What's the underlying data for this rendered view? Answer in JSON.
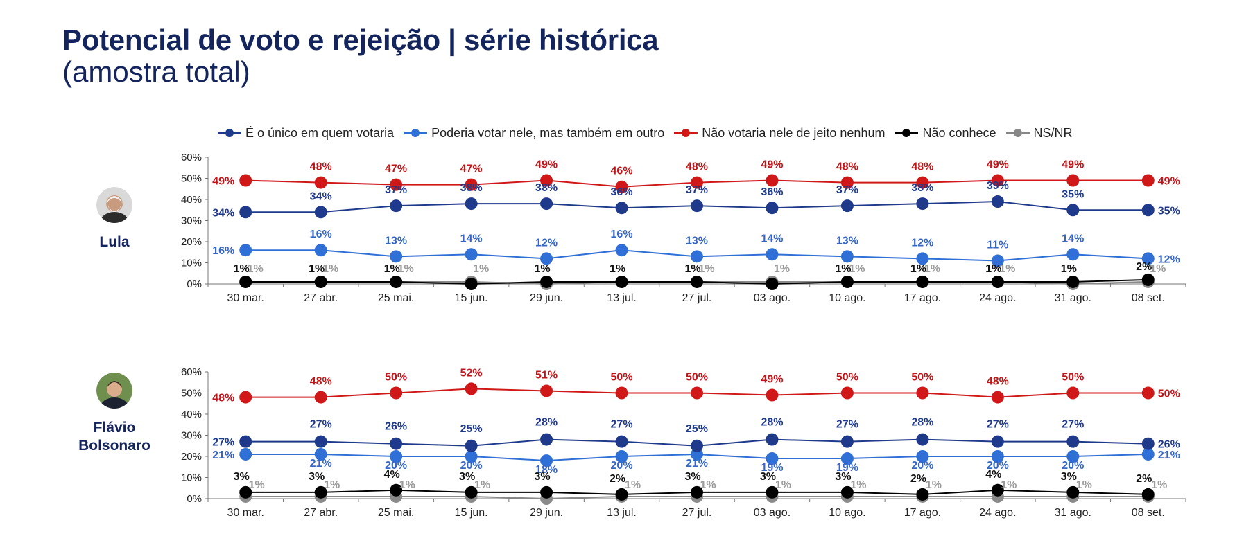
{
  "title": "Potencial de voto e rejeição | série histórica",
  "subtitle": "(amostra total)",
  "legend": [
    {
      "label": "É o único em quem votaria",
      "color": "#1f3a8a"
    },
    {
      "label": "Poderia votar nele, mas também em outro",
      "color": "#2f6fd6"
    },
    {
      "label": "Não votaria nele de jeito nenhum",
      "color": "#d01818"
    },
    {
      "label": "Não conhece",
      "color": "#000000"
    },
    {
      "label": "NS/NR",
      "color": "#888888"
    }
  ],
  "people": [
    {
      "name_lines": [
        "Lula"
      ],
      "avatar_colors": {
        "bg": "#d9d9d9",
        "skin": "#c89a7e",
        "hair": "#f2f2f2"
      }
    },
    {
      "name_lines": [
        "Flávio",
        "Bolsonaro"
      ],
      "avatar_colors": {
        "bg": "#6f8f4e",
        "skin": "#d9ad8c",
        "hair": "#3a2b22"
      }
    }
  ],
  "chart_data": [
    {
      "type": "line",
      "candidate": "Lula",
      "categories": [
        "30 mar.",
        "27 abr.",
        "25 mai.",
        "15 jun.",
        "29 jun.",
        "13 jul.",
        "27 jul.",
        "03 ago.",
        "10 ago.",
        "17 ago.",
        "24 ago.",
        "31 ago.",
        "08 set."
      ],
      "ylim": [
        0,
        60
      ],
      "yticks": [
        "0%",
        "10%",
        "20%",
        "30%",
        "40%",
        "50%",
        "60%"
      ],
      "series": [
        {
          "name": "É o único em quem votaria",
          "color": "#1f3a8a",
          "values": [
            34,
            34,
            37,
            38,
            38,
            36,
            37,
            36,
            37,
            38,
            39,
            35,
            35
          ]
        },
        {
          "name": "Poderia votar nele, mas também em outro",
          "color": "#2f6fd6",
          "label_color": "#3566c4",
          "values": [
            16,
            16,
            13,
            14,
            12,
            16,
            13,
            14,
            13,
            12,
            11,
            14,
            12
          ]
        },
        {
          "name": "Não votaria nele de jeito nenhum",
          "color": "#d01818",
          "label_color": "#c0161a",
          "values": [
            49,
            48,
            47,
            47,
            49,
            46,
            48,
            49,
            48,
            48,
            49,
            49,
            49
          ]
        },
        {
          "name": "Não conhece",
          "color": "#000000",
          "label_color": "#111111",
          "values": [
            1,
            1,
            1,
            0,
            1,
            1,
            1,
            0,
            1,
            1,
            1,
            1,
            2
          ],
          "labels": [
            "1%",
            "1%",
            "1%",
            "",
            "1%",
            "1%",
            "1%",
            "",
            "1%",
            "1%",
            "1%",
            "1%",
            "2%"
          ]
        },
        {
          "name": "NS/NR",
          "color": "#8a8a8a",
          "label_color": "#9a9a9a",
          "values": [
            1,
            1,
            1,
            1,
            0,
            1,
            1,
            1,
            1,
            1,
            1,
            0,
            1
          ],
          "labels": [
            "1%",
            "1%",
            "1%",
            "1%",
            "",
            "",
            "1%",
            "1%",
            "1%",
            "1%",
            "1%",
            "",
            "1%"
          ]
        }
      ]
    },
    {
      "type": "line",
      "candidate": "Flávio Bolsonaro",
      "categories": [
        "30 mar.",
        "27 abr.",
        "25 mai.",
        "15 jun.",
        "29 jun.",
        "13 jul.",
        "27 jul.",
        "03 ago.",
        "10 ago.",
        "17 ago.",
        "24 ago.",
        "31 ago.",
        "08 set."
      ],
      "ylim": [
        0,
        60
      ],
      "yticks": [
        "0%",
        "10%",
        "20%",
        "30%",
        "40%",
        "50%",
        "60%"
      ],
      "series": [
        {
          "name": "É o único em quem votaria",
          "color": "#1f3a8a",
          "values": [
            27,
            27,
            26,
            25,
            28,
            27,
            25,
            28,
            27,
            28,
            27,
            27,
            26
          ]
        },
        {
          "name": "Poderia votar nele, mas também em outro",
          "color": "#2f6fd6",
          "label_color": "#3566c4",
          "values": [
            21,
            21,
            20,
            20,
            18,
            20,
            21,
            19,
            19,
            20,
            20,
            20,
            21
          ]
        },
        {
          "name": "Não votaria nele de jeito nenhum",
          "color": "#d01818",
          "label_color": "#c0161a",
          "values": [
            48,
            48,
            50,
            52,
            51,
            50,
            50,
            49,
            50,
            50,
            48,
            50,
            50
          ]
        },
        {
          "name": "Não conhece",
          "color": "#000000",
          "label_color": "#111111",
          "values": [
            3,
            3,
            4,
            3,
            3,
            2,
            3,
            3,
            3,
            2,
            4,
            3,
            2
          ]
        },
        {
          "name": "NS/NR",
          "color": "#8a8a8a",
          "label_color": "#9a9a9a",
          "values": [
            1,
            1,
            1,
            1,
            0,
            1,
            1,
            1,
            1,
            1,
            1,
            1,
            1
          ],
          "labels": [
            "1%",
            "1%",
            "1%",
            "1%",
            "",
            "1%",
            "1%",
            "1%",
            "1%",
            "1%",
            "1%",
            "1%",
            "1%"
          ]
        }
      ]
    }
  ]
}
